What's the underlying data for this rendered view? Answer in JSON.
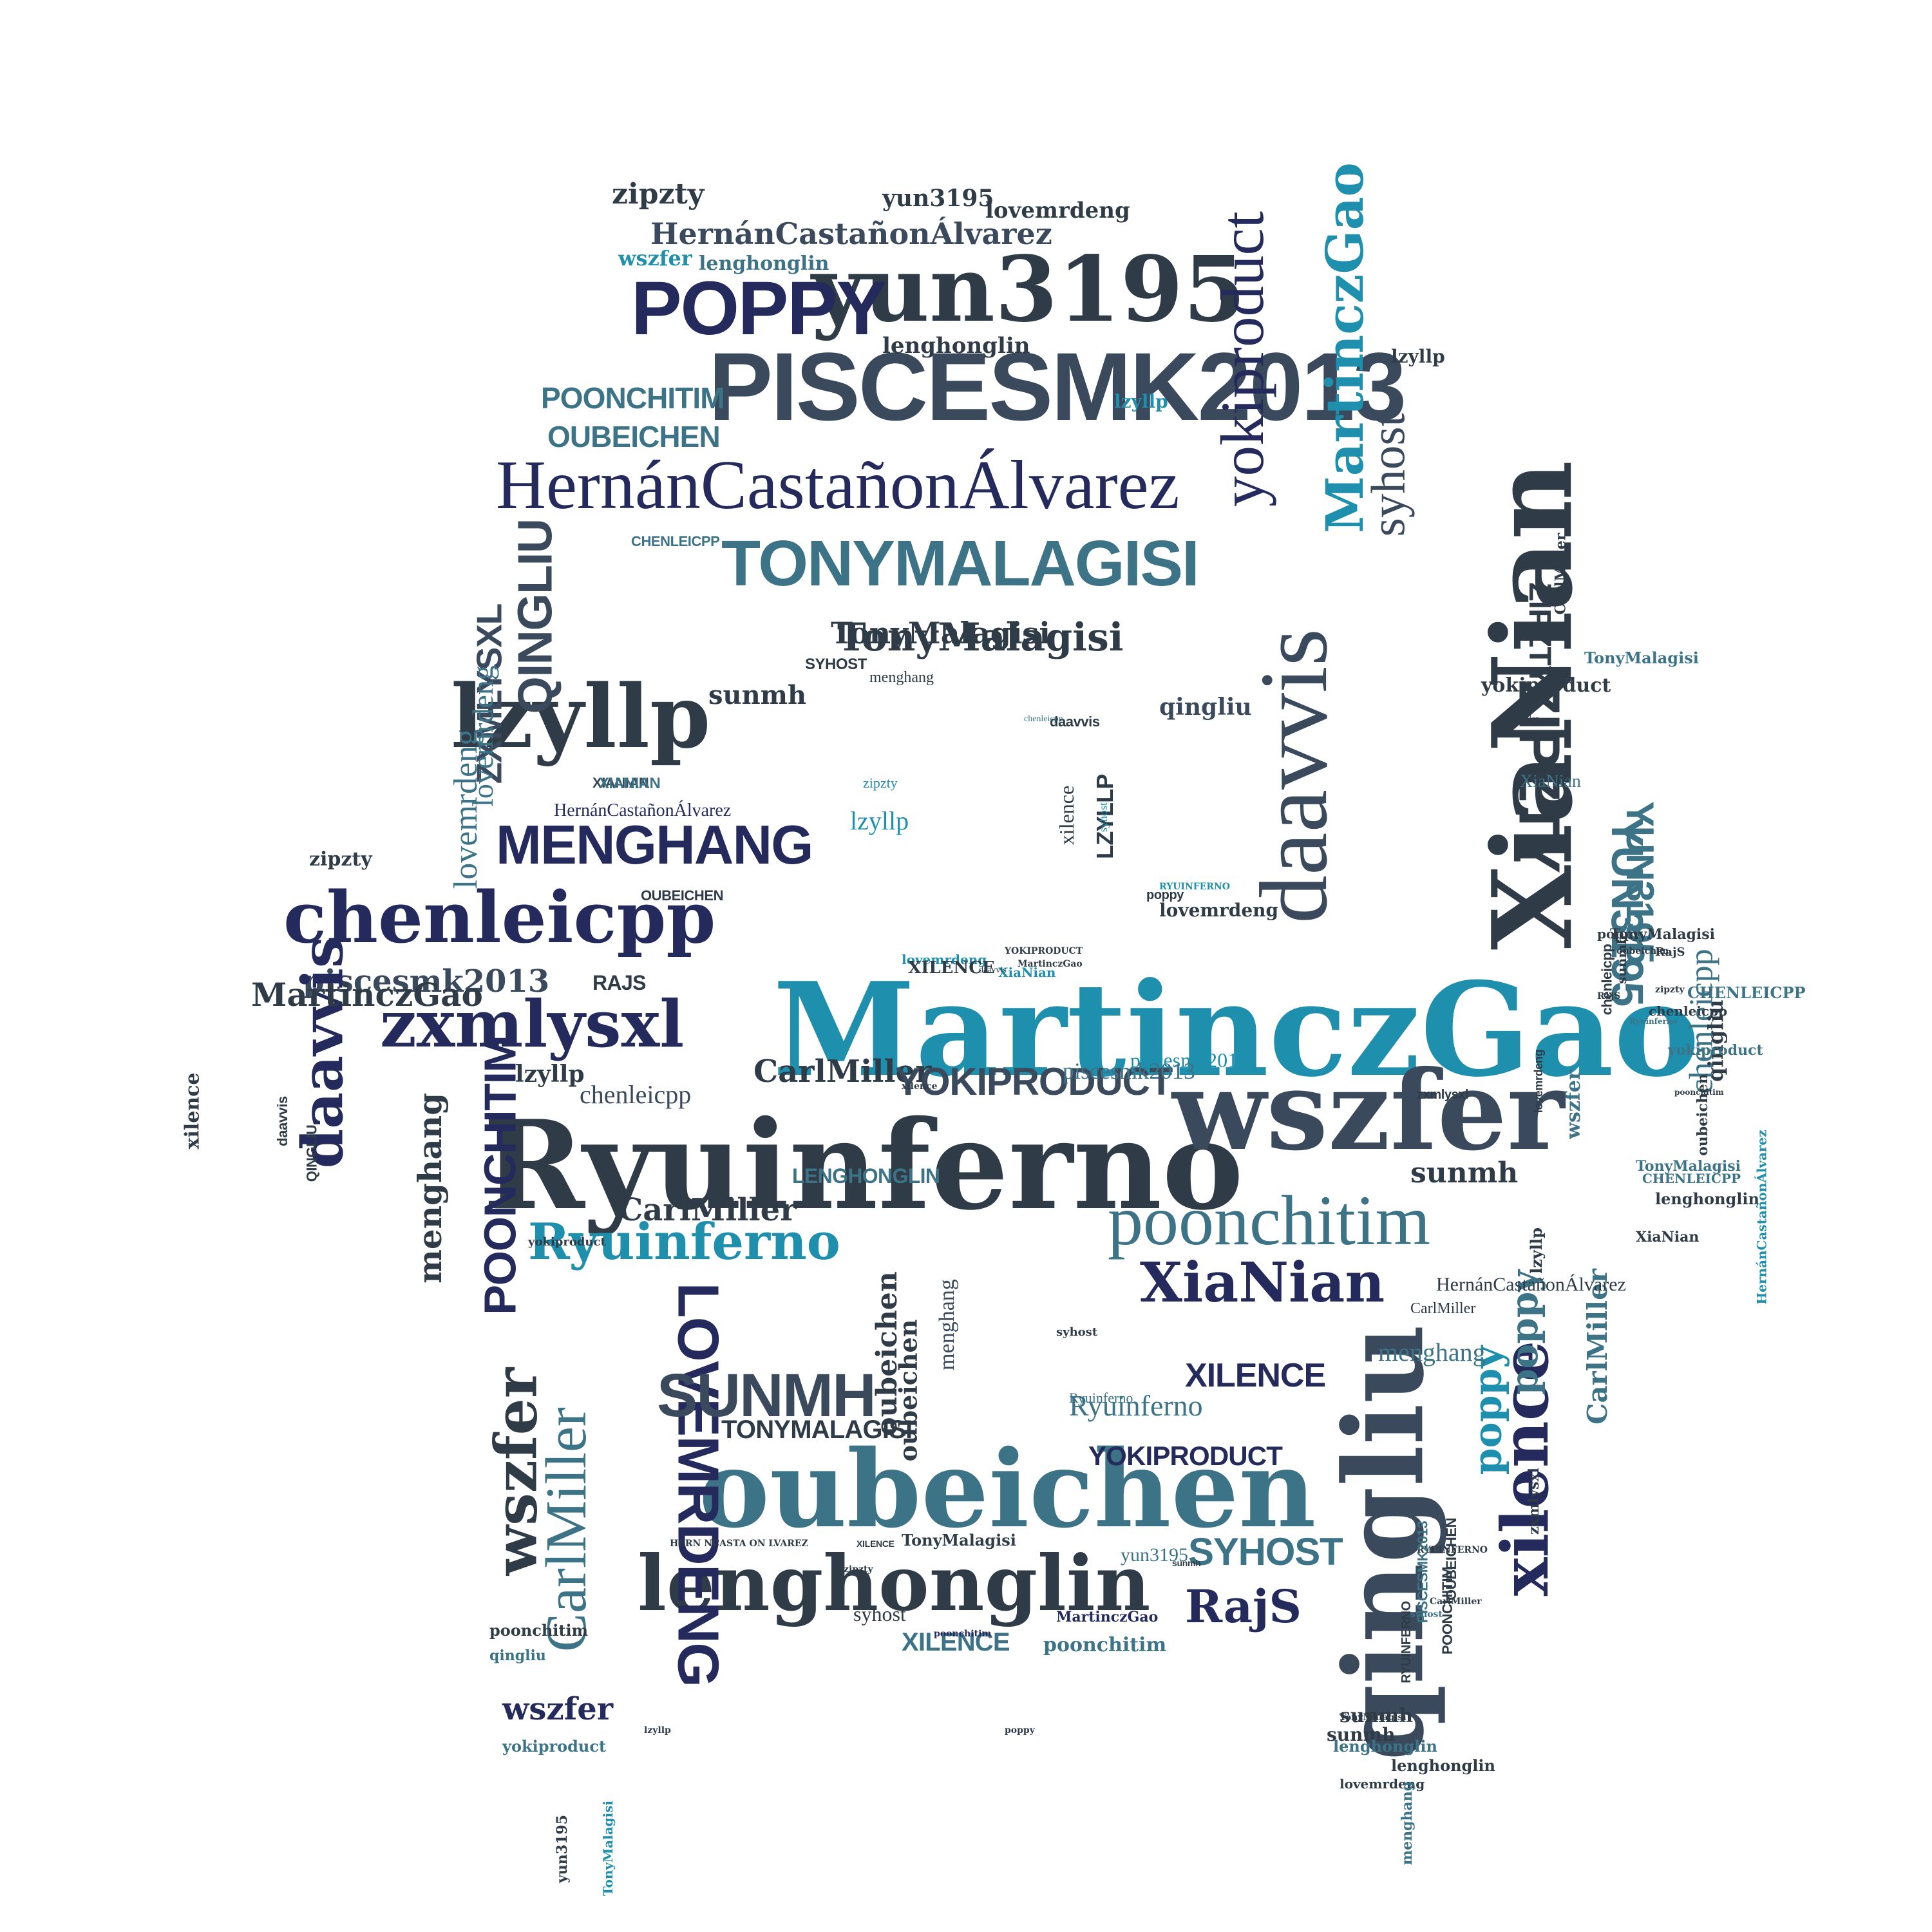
{
  "words": [
    {
      "text": "MartinczGao",
      "color": "teal"
    },
    {
      "text": "Ryuinferno",
      "color": "dark"
    },
    {
      "text": "wszfer",
      "color": "slate"
    },
    {
      "text": "oubeichen",
      "color": "steel"
    },
    {
      "text": "lenghonglin",
      "color": "dark"
    },
    {
      "text": "qingliu",
      "color": "slate"
    },
    {
      "text": "XiaNian",
      "color": "dark"
    },
    {
      "text": "daavvis",
      "color": "slate"
    },
    {
      "text": "yun3195",
      "color": "dark"
    },
    {
      "text": "PISCESMK2013",
      "color": "slate"
    },
    {
      "text": "POPPY",
      "color": "navy"
    },
    {
      "text": "HernánCastañonÁlvarez",
      "color": "navy"
    },
    {
      "text": "TONYMALAGISI",
      "color": "steel"
    },
    {
      "text": "lzyllp",
      "color": "dark"
    },
    {
      "text": "chenleicpp",
      "color": "navy"
    },
    {
      "text": "zxmlysxl",
      "color": "navy"
    },
    {
      "text": "poonchitim",
      "color": "steel"
    },
    {
      "text": "MENGHANG",
      "color": "navy"
    },
    {
      "text": "piscesmk2013",
      "color": "slate"
    },
    {
      "text": "yokiproduct",
      "color": "navy"
    },
    {
      "text": "MartinczGao",
      "color": "teal"
    },
    {
      "text": "syhost",
      "color": "slate"
    },
    {
      "text": "ZIPZTY",
      "color": "dark"
    },
    {
      "text": "YUN3195",
      "color": "steel"
    },
    {
      "text": "TonyMalagisi",
      "color": "dark"
    },
    {
      "text": "CarlMiller",
      "color": "dark"
    },
    {
      "text": "XiaNian",
      "color": "navy"
    },
    {
      "text": "Ryuinferno",
      "color": "teal"
    },
    {
      "text": "YOKIPRODUCT",
      "color": "slate"
    },
    {
      "text": "xilence",
      "color": "navy"
    },
    {
      "text": "LOVEMRDENG",
      "color": "navy"
    },
    {
      "text": "SUNMH",
      "color": "slate"
    },
    {
      "text": "CarlMiller",
      "color": "steel"
    },
    {
      "text": "wszfer",
      "color": "dark"
    },
    {
      "text": "RajS",
      "color": "navy"
    },
    {
      "text": "SYHOST",
      "color": "steel"
    },
    {
      "text": "poppy",
      "color": "teal"
    },
    {
      "text": "QINGLIU",
      "color": "slate"
    },
    {
      "text": "ZXMLYSXL",
      "color": "slate"
    },
    {
      "text": "POONCHITIM",
      "color": "navy"
    },
    {
      "text": "menghang",
      "color": "dark"
    },
    {
      "text": "lovemrdeng",
      "color": "steel"
    },
    {
      "text": "lenghonglin",
      "color": "dark"
    },
    {
      "text": "HernánCastañonÁlvarez",
      "color": "slate"
    },
    {
      "text": "zipzty",
      "color": "dark"
    },
    {
      "text": "POONCHITIM",
      "color": "steel"
    },
    {
      "text": "OUBEICHEN",
      "color": "steel"
    },
    {
      "text": "sunmh",
      "color": "dark"
    },
    {
      "text": "TonyMalagisi",
      "color": "dark"
    },
    {
      "text": "daavvis",
      "color": "navy"
    },
    {
      "text": "chenleicpp",
      "color": "steel"
    },
    {
      "text": "YUN3195",
      "color": "steel"
    },
    {
      "text": "sunmh",
      "color": "dark"
    },
    {
      "text": "XILENCE",
      "color": "navy"
    },
    {
      "text": "Ryuinferno",
      "color": "steel"
    },
    {
      "text": "YOKIPRODUCT",
      "color": "navy"
    },
    {
      "text": "TONYMALAGISI",
      "color": "dark"
    },
    {
      "text": "lzyllp",
      "color": "teal"
    },
    {
      "text": "zipzty",
      "color": "teal"
    },
    {
      "text": "xilence",
      "color": "dark"
    },
    {
      "text": "LZYLLP",
      "color": "dark"
    },
    {
      "text": "syhost",
      "color": "teal"
    },
    {
      "text": "piscesmk2013",
      "color": "teal"
    },
    {
      "text": "chenleicpp",
      "color": "slate"
    },
    {
      "text": "CarlMiller",
      "color": "dark"
    },
    {
      "text": "RAJS",
      "color": "dark"
    },
    {
      "text": "lovemrdeng",
      "color": "steel"
    },
    {
      "text": "lenghonglin",
      "color": "steel"
    },
    {
      "text": "zipzty",
      "color": "dark"
    },
    {
      "text": "lzyllp",
      "color": "dark"
    },
    {
      "text": "wszfer",
      "color": "teal"
    },
    {
      "text": "ZIPZTY",
      "color": "dark"
    },
    {
      "text": "XIANIAN",
      "color": "slate"
    },
    {
      "text": "yun3195",
      "color": "dark"
    },
    {
      "text": "CHENLEICPP",
      "color": "steel"
    },
    {
      "text": "SYHOST",
      "color": "dark"
    },
    {
      "text": "lzyllp",
      "color": "teal"
    },
    {
      "text": "lzyllp",
      "color": "dark"
    },
    {
      "text": "lovemrdeng",
      "color": "dark"
    },
    {
      "text": "XIANIAN",
      "color": "steel"
    },
    {
      "text": "HernánCastañonÁlvarez",
      "color": "navy"
    },
    {
      "text": "menghang",
      "color": "slate"
    },
    {
      "text": "yokiproduct",
      "color": "dark"
    },
    {
      "text": "XiaNian",
      "color": "steel"
    },
    {
      "text": "qingliu",
      "color": "slate"
    },
    {
      "text": "TonyMalagisi",
      "color": "dark"
    },
    {
      "text": "CarlMiller",
      "color": "steel"
    },
    {
      "text": "oubeichen",
      "color": "dark"
    },
    {
      "text": "poonchitim",
      "color": "steel"
    },
    {
      "text": "qingliu",
      "color": "dark"
    },
    {
      "text": "LENGHONGLIN",
      "color": "steel"
    },
    {
      "text": "RYUINFERNO",
      "color": "dark"
    },
    {
      "text": "menghang",
      "color": "steel"
    },
    {
      "text": "oubeichen",
      "color": "dark"
    },
    {
      "text": "Ryuinferno",
      "color": "steel"
    },
    {
      "text": "poppy",
      "color": "steel"
    },
    {
      "text": "piscesmk2013",
      "color": "steel"
    },
    {
      "text": "syhost",
      "color": "dark"
    },
    {
      "text": "XILENCE",
      "color": "steel"
    },
    {
      "text": "poonchitim",
      "color": "navy"
    },
    {
      "text": "MartinczGao",
      "color": "navy"
    },
    {
      "text": "lenghonglin",
      "color": "dark"
    },
    {
      "text": "TonyMalagisi",
      "color": "dark"
    },
    {
      "text": "yun3195",
      "color": "steel"
    },
    {
      "text": "HERN NCASTA ON LVAREZ",
      "color": "dark"
    },
    {
      "text": "XILENCE",
      "color": "dark"
    },
    {
      "text": "yokiproduct",
      "color": "steel"
    },
    {
      "text": "sunmh",
      "color": "dark"
    },
    {
      "text": "wszfer",
      "color": "navy"
    },
    {
      "text": "TonyMalagisi",
      "color": "teal"
    },
    {
      "text": "yun3195",
      "color": "dark"
    },
    {
      "text": "lovemrdeng",
      "color": "dark"
    },
    {
      "text": "lenghonglin",
      "color": "steel"
    },
    {
      "text": "sunmh",
      "color": "dark"
    },
    {
      "text": "zxmlysxl",
      "color": "dark"
    },
    {
      "text": "menghang",
      "color": "steel"
    },
    {
      "text": "HernánCastañonÁlvarez",
      "color": "dark"
    },
    {
      "text": "TonyMalagisi",
      "color": "dark"
    },
    {
      "text": "RYUINFERNO",
      "color": "dark"
    },
    {
      "text": "PISCESMK2013",
      "color": "steel"
    },
    {
      "text": "POONCHITIM",
      "color": "dark"
    },
    {
      "text": "OUBEICHEN",
      "color": "dark"
    },
    {
      "text": "chenleicpp",
      "color": "dark"
    },
    {
      "text": "Ryuinferno",
      "color": "steel"
    },
    {
      "text": "qingliu",
      "color": "steel"
    },
    {
      "text": "poonchitim",
      "color": "dark"
    },
    {
      "text": "TonyMalagisi",
      "color": "steel"
    },
    {
      "text": "oubeichen",
      "color": "dark"
    },
    {
      "text": "lenghonglin",
      "color": "dark"
    },
    {
      "text": "CHENLEICPP",
      "color": "steel"
    },
    {
      "text": "daavvis",
      "color": "dark"
    },
    {
      "text": "MartinczGao",
      "color": "dark"
    },
    {
      "text": "xilence",
      "color": "dark"
    },
    {
      "text": "lovemrdeng",
      "color": "teal"
    },
    {
      "text": "menghang",
      "color": "dark"
    },
    {
      "text": "XiaNian",
      "color": "teal"
    },
    {
      "text": "poppy",
      "color": "dark"
    },
    {
      "text": "RYUINFERNO",
      "color": "teal"
    },
    {
      "text": "YOKIPRODUCT",
      "color": "dark"
    },
    {
      "text": "OUBEICHEN",
      "color": "dark"
    },
    {
      "text": "zxmlysxl",
      "color": "dark"
    },
    {
      "text": "lovemrdeng",
      "color": "dark"
    },
    {
      "text": "chenleicpp",
      "color": "dark"
    },
    {
      "text": "sunmh",
      "color": "dark"
    },
    {
      "text": "zipzty",
      "color": "dark"
    },
    {
      "text": "yokiproduct",
      "color": "steel"
    },
    {
      "text": "poonchitim",
      "color": "dark"
    },
    {
      "text": "CarlMiller",
      "color": "dark"
    },
    {
      "text": "TonyMalagisi",
      "color": "steel"
    },
    {
      "text": "XiaNian",
      "color": "dark"
    },
    {
      "text": "HernánCastañonÁlvarez",
      "color": "teal"
    },
    {
      "text": "wszfer",
      "color": "steel"
    },
    {
      "text": "CarlMiller",
      "color": "dark"
    },
    {
      "text": "lzyllp",
      "color": "dark"
    },
    {
      "text": "CHENLEICPP",
      "color": "steel"
    },
    {
      "text": "yokiproduct",
      "color": "dark"
    },
    {
      "text": "QINGLIU",
      "color": "dark"
    },
    {
      "text": "RajS",
      "color": "dark"
    },
    {
      "text": "daavvis",
      "color": "dark"
    },
    {
      "text": "oubeichen",
      "color": "dark"
    },
    {
      "text": "lovemrdeng",
      "color": "dark"
    },
    {
      "text": "CarlMiller",
      "color": "dark"
    },
    {
      "text": "syhost",
      "color": "dark"
    },
    {
      "text": "poppy",
      "color": "dark"
    },
    {
      "text": "MartinczGao",
      "color": "dark"
    },
    {
      "text": "xilence",
      "color": "dark"
    },
    {
      "text": "XILENCE",
      "color": "dark"
    },
    {
      "text": "sunmh",
      "color": "dark"
    },
    {
      "text": "zipzty",
      "color": "dark"
    },
    {
      "text": "daavvis",
      "color": "dark"
    },
    {
      "text": "lzyllp",
      "color": "dark"
    },
    {
      "text": "poppy",
      "color": "dark"
    },
    {
      "text": "CarlMiller",
      "color": "dark"
    },
    {
      "text": "RajS",
      "color": "dark"
    },
    {
      "text": "chenleicpp",
      "color": "steel"
    },
    {
      "text": "syhost",
      "color": "steel"
    },
    {
      "text": "XiaNian",
      "color": "dark"
    }
  ]
}
